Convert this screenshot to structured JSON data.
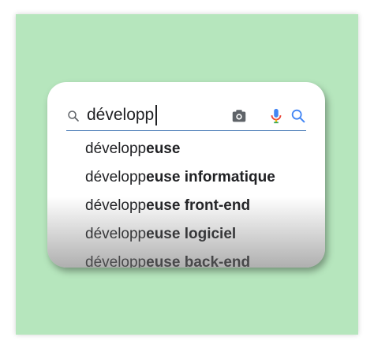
{
  "search": {
    "query": "développ",
    "icons": {
      "left": "search-icon",
      "camera": "camera-icon",
      "mic": "microphone-icon",
      "submit": "search-icon"
    },
    "colors": {
      "underline": "#4e7fb8",
      "mic_blue": "#4285f4",
      "mic_red": "#ea4335",
      "mic_yellow": "#fbbc05",
      "search_blue": "#4285f4"
    }
  },
  "suggestions": [
    {
      "prefix": "développ",
      "completion": "euse"
    },
    {
      "prefix": "développ",
      "completion": "euse informatique"
    },
    {
      "prefix": "développ",
      "completion": "euse front-end"
    },
    {
      "prefix": "développ",
      "completion": "euse logiciel"
    },
    {
      "prefix": "développ",
      "completion": "euse back-end"
    }
  ],
  "background": {
    "color": "#b6e6bd"
  }
}
